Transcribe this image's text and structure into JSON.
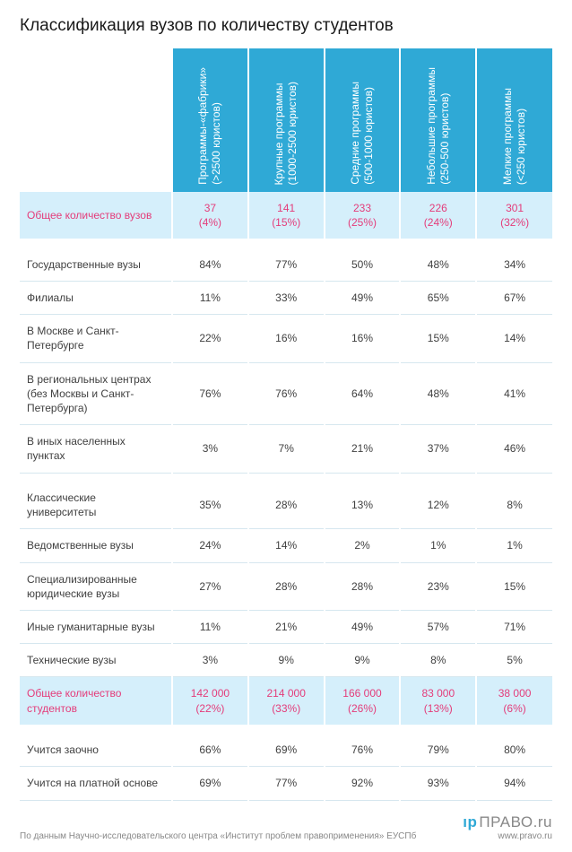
{
  "title": "Классификация вузов по количеству студентов",
  "columns": [
    {
      "line1": "Программы-«фабрики»",
      "line2": "(>2500 юристов)"
    },
    {
      "line1": "Крупные программы",
      "line2": "(1000-2500 юристов)"
    },
    {
      "line1": "Средние программы",
      "line2": "(500-1000 юристов)"
    },
    {
      "line1": "Небольшие программы",
      "line2": "(250-500 юристов)"
    },
    {
      "line1": "Мелкие программы",
      "line2": "(<250 юристов)"
    }
  ],
  "sections": [
    {
      "type": "highlight",
      "label": "Общее количество вузов",
      "cells": [
        {
          "v1": "37",
          "v2": "(4%)"
        },
        {
          "v1": "141",
          "v2": "(15%)"
        },
        {
          "v1": "233",
          "v2": "(25%)"
        },
        {
          "v1": "226",
          "v2": "(24%)"
        },
        {
          "v1": "301",
          "v2": "(32%)"
        }
      ]
    },
    {
      "type": "gap"
    },
    {
      "type": "data",
      "label": "Государственные вузы",
      "cells": [
        "84%",
        "77%",
        "50%",
        "48%",
        "34%"
      ]
    },
    {
      "type": "data",
      "label": "Филиалы",
      "cells": [
        "11%",
        "33%",
        "49%",
        "65%",
        "67%"
      ]
    },
    {
      "type": "data",
      "label": "В Москве и Санкт-Петербурге",
      "cells": [
        "22%",
        "16%",
        "16%",
        "15%",
        "14%"
      ]
    },
    {
      "type": "data",
      "label": "В региональных центрах (без Москвы и Санкт-Петербурга)",
      "cells": [
        "76%",
        "76%",
        "64%",
        "48%",
        "41%"
      ]
    },
    {
      "type": "data",
      "label": "В иных населенных пунктах",
      "cells": [
        "3%",
        "7%",
        "21%",
        "37%",
        "46%"
      ]
    },
    {
      "type": "gap"
    },
    {
      "type": "data",
      "label": "Классические университеты",
      "cells": [
        "35%",
        "28%",
        "13%",
        "12%",
        "8%"
      ]
    },
    {
      "type": "data",
      "label": "Ведомственные вузы",
      "cells": [
        "24%",
        "14%",
        "2%",
        "1%",
        "1%"
      ]
    },
    {
      "type": "data",
      "label": "Специализированные юридические вузы",
      "cells": [
        "27%",
        "28%",
        "28%",
        "23%",
        "15%"
      ]
    },
    {
      "type": "data",
      "label": "Иные гуманитарные вузы",
      "cells": [
        "11%",
        "21%",
        "49%",
        "57%",
        "71%"
      ]
    },
    {
      "type": "data",
      "label": "Технические вузы",
      "cells": [
        "3%",
        "9%",
        "9%",
        "8%",
        "5%"
      ]
    },
    {
      "type": "highlight",
      "label": "Общее количество студентов",
      "cells": [
        {
          "v1": "142 000",
          "v2": "(22%)"
        },
        {
          "v1": "214 000",
          "v2": "(33%)"
        },
        {
          "v1": "166 000",
          "v2": "(26%)"
        },
        {
          "v1": "83 000",
          "v2": "(13%)"
        },
        {
          "v1": "38 000",
          "v2": "(6%)"
        }
      ]
    },
    {
      "type": "gap"
    },
    {
      "type": "data",
      "label": "Учится заочно",
      "cells": [
        "66%",
        "69%",
        "76%",
        "79%",
        "80%"
      ]
    },
    {
      "type": "data",
      "label": "Учится на платной основе",
      "cells": [
        "69%",
        "77%",
        "92%",
        "93%",
        "94%"
      ]
    }
  ],
  "footer": {
    "source": "По данным Научно-исследовательского центра «Институт проблем правоприменения» ЕУСПб",
    "logo_text": "ПРАВО",
    "logo_suffix": ".ru",
    "logo_url": "www.pravo.ru"
  },
  "colors": {
    "header_bg": "#2fa9d6",
    "highlight_bg": "#d5effb",
    "pink": "#e43c7a",
    "border": "#d6e7ef"
  }
}
